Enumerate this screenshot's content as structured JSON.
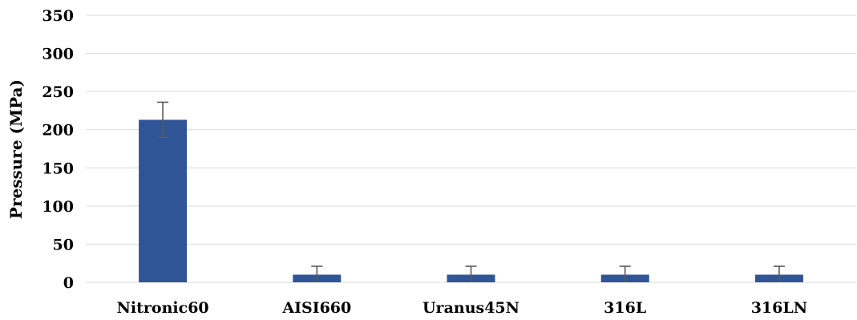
{
  "chart_data": {
    "type": "bar",
    "categories": [
      "Nitronic60",
      "AISI660",
      "Uranus45N",
      "316L",
      "316LN"
    ],
    "values": [
      213,
      10,
      10,
      10,
      10
    ],
    "error": [
      23,
      11,
      11,
      11,
      11
    ],
    "title": "",
    "xlabel": "",
    "ylabel": "Pressure (MPa)",
    "ylim": [
      0,
      350
    ],
    "yticks": [
      0,
      50,
      100,
      150,
      200,
      250,
      300,
      350
    ],
    "grid": true,
    "bar_color": "#2F5597",
    "error_color": "#595959"
  }
}
